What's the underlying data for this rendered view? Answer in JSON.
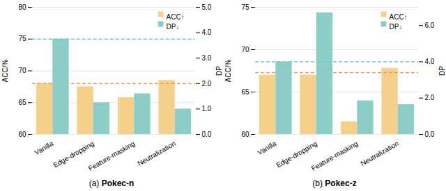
{
  "chart_data": [
    {
      "type": "bar",
      "title": "(a) Pokec-n",
      "categories": [
        "Vanilla",
        "Edge-dropping",
        "Feature-masking",
        "Neutralization"
      ],
      "series": [
        {
          "name": "ACC↑",
          "color": "#F5D08B",
          "values": [
            68.0,
            67.5,
            65.8,
            68.5
          ],
          "reference_line": {
            "value": 68.0,
            "color": "#E89B50",
            "line_style": "dashed"
          }
        },
        {
          "name": "DP↓",
          "color": "#8DCDC8",
          "values": [
            3.75,
            1.25,
            1.6,
            1.0
          ],
          "axis": "y2",
          "reference_line": {
            "value": 3.75,
            "color": "#6DC8D8",
            "line_style": "dashed"
          }
        }
      ],
      "ylabel": "ACC/%",
      "y2label": "DP",
      "ylim": [
        60,
        80
      ],
      "yticks": [
        60,
        65,
        70,
        75,
        80
      ],
      "y2lim": [
        0,
        5
      ],
      "y2ticks": [
        0,
        1,
        2,
        3,
        4,
        5
      ],
      "grid": true,
      "legend": "upper right"
    },
    {
      "type": "bar",
      "title": "(b) Pokec-z",
      "categories": [
        "Vanilla",
        "Edge-dropping",
        "Feature-masking",
        "Neutralization"
      ],
      "series": [
        {
          "name": "ACC↑",
          "color": "#F5D08B",
          "values": [
            67.0,
            67.0,
            61.5,
            67.8
          ],
          "reference_line": {
            "value": 67.3,
            "color": "#E89B50",
            "line_style": "dashed"
          }
        },
        {
          "name": "DP↓",
          "color": "#8DCDC8",
          "values": [
            4.0,
            6.7,
            1.85,
            1.65
          ],
          "axis": "y2",
          "reference_line": {
            "value": 4.0,
            "color": "#6DC8D8",
            "line_style": "dashed"
          }
        }
      ],
      "ylabel": "ACC/%",
      "y2label": "DP",
      "ylim": [
        60,
        75
      ],
      "yticks": [
        60,
        65,
        70,
        75
      ],
      "y2lim": [
        0,
        7
      ],
      "y2ticks": [
        0,
        2,
        4,
        6
      ],
      "grid": true,
      "legend": "upper right"
    }
  ]
}
